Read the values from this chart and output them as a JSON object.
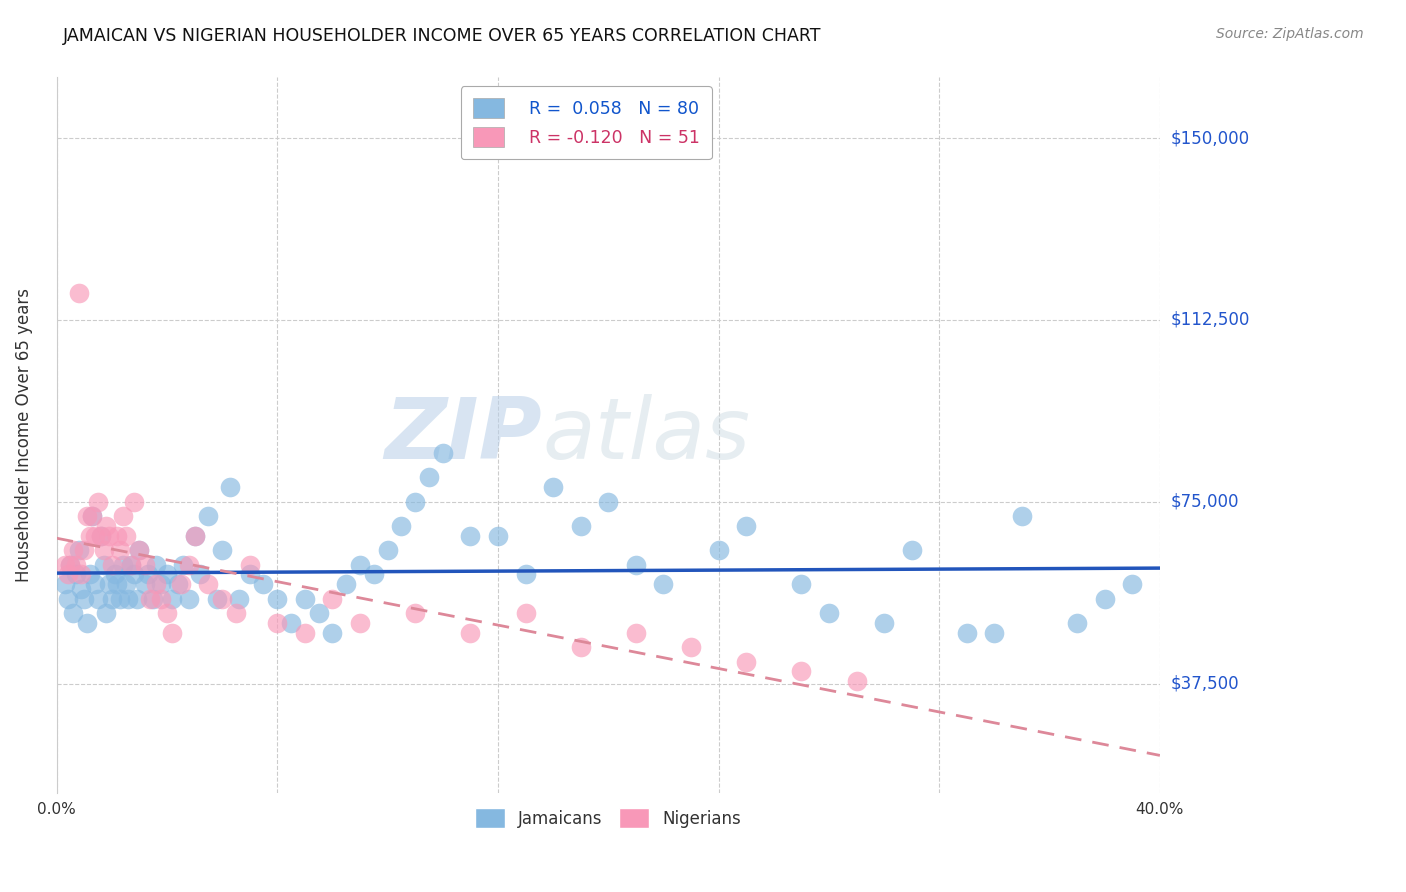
{
  "title": "JAMAICAN VS NIGERIAN HOUSEHOLDER INCOME OVER 65 YEARS CORRELATION CHART",
  "source": "Source: ZipAtlas.com",
  "ylabel": "Householder Income Over 65 years",
  "xlim": [
    0.0,
    0.4
  ],
  "ylim": [
    15000,
    162500
  ],
  "yticks": [
    37500,
    75000,
    112500,
    150000
  ],
  "ytick_labels": [
    "$37,500",
    "$75,000",
    "$112,500",
    "$150,000"
  ],
  "xticks": [
    0.0,
    0.08,
    0.16,
    0.24,
    0.32,
    0.4
  ],
  "xtick_labels": [
    "0.0%",
    "",
    "",
    "",
    "",
    "40.0%"
  ],
  "watermark_zip": "ZIP",
  "watermark_atlas": "atlas",
  "jamaicans_color": "#85b8e0",
  "nigerians_color": "#f898b8",
  "trend_jamaicans_color": "#2255bb",
  "trend_nigerians_color": "#dd8899",
  "jamaicans_x": [
    0.003,
    0.004,
    0.005,
    0.006,
    0.007,
    0.008,
    0.009,
    0.01,
    0.011,
    0.012,
    0.013,
    0.014,
    0.015,
    0.016,
    0.017,
    0.018,
    0.019,
    0.02,
    0.021,
    0.022,
    0.023,
    0.024,
    0.025,
    0.026,
    0.027,
    0.028,
    0.029,
    0.03,
    0.032,
    0.033,
    0.035,
    0.036,
    0.038,
    0.04,
    0.042,
    0.044,
    0.046,
    0.048,
    0.05,
    0.052,
    0.055,
    0.058,
    0.06,
    0.063,
    0.066,
    0.07,
    0.075,
    0.08,
    0.085,
    0.09,
    0.095,
    0.1,
    0.105,
    0.11,
    0.115,
    0.12,
    0.125,
    0.13,
    0.135,
    0.14,
    0.15,
    0.16,
    0.17,
    0.18,
    0.19,
    0.2,
    0.21,
    0.22,
    0.24,
    0.25,
    0.27,
    0.28,
    0.3,
    0.31,
    0.33,
    0.34,
    0.35,
    0.37,
    0.38,
    0.39
  ],
  "jamaicans_y": [
    58000,
    55000,
    62000,
    52000,
    60000,
    65000,
    57000,
    55000,
    50000,
    60000,
    72000,
    58000,
    55000,
    68000,
    62000,
    52000,
    58000,
    55000,
    60000,
    58000,
    55000,
    62000,
    58000,
    55000,
    62000,
    60000,
    55000,
    65000,
    58000,
    60000,
    55000,
    62000,
    58000,
    60000,
    55000,
    58000,
    62000,
    55000,
    68000,
    60000,
    72000,
    55000,
    65000,
    78000,
    55000,
    60000,
    58000,
    55000,
    50000,
    55000,
    52000,
    48000,
    58000,
    62000,
    60000,
    65000,
    70000,
    75000,
    80000,
    85000,
    68000,
    68000,
    60000,
    78000,
    70000,
    75000,
    62000,
    58000,
    65000,
    70000,
    58000,
    52000,
    50000,
    65000,
    48000,
    48000,
    72000,
    50000,
    55000,
    58000
  ],
  "nigerians_x": [
    0.003,
    0.004,
    0.005,
    0.006,
    0.007,
    0.008,
    0.009,
    0.01,
    0.011,
    0.012,
    0.013,
    0.014,
    0.015,
    0.016,
    0.017,
    0.018,
    0.019,
    0.02,
    0.022,
    0.023,
    0.024,
    0.025,
    0.027,
    0.028,
    0.03,
    0.032,
    0.034,
    0.036,
    0.038,
    0.04,
    0.042,
    0.045,
    0.048,
    0.05,
    0.055,
    0.06,
    0.065,
    0.07,
    0.08,
    0.09,
    0.1,
    0.11,
    0.13,
    0.15,
    0.17,
    0.19,
    0.21,
    0.23,
    0.25,
    0.27,
    0.29
  ],
  "nigerians_y": [
    62000,
    60000,
    62000,
    65000,
    62000,
    118000,
    60000,
    65000,
    72000,
    68000,
    72000,
    68000,
    75000,
    68000,
    65000,
    70000,
    68000,
    62000,
    68000,
    65000,
    72000,
    68000,
    62000,
    75000,
    65000,
    62000,
    55000,
    58000,
    55000,
    52000,
    48000,
    58000,
    62000,
    68000,
    58000,
    55000,
    52000,
    62000,
    50000,
    48000,
    55000,
    50000,
    52000,
    48000,
    52000,
    45000,
    48000,
    45000,
    42000,
    40000,
    38000
  ]
}
